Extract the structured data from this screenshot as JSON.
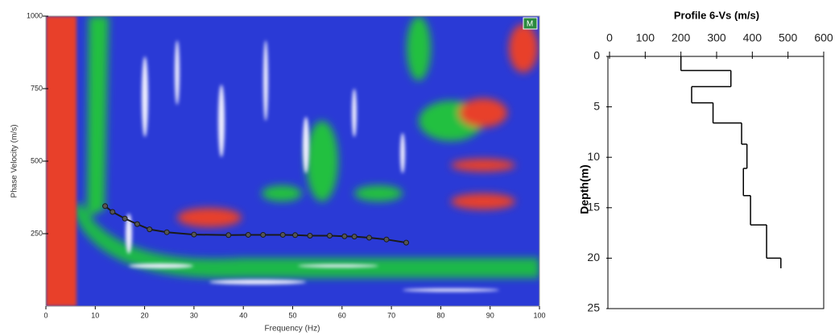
{
  "chart_data": [
    {
      "type": "line",
      "x_label": "Frequency (Hz)",
      "y_label": "Phase Velocity (m/s)",
      "badge": "M",
      "x": [
        12,
        13.5,
        16,
        18.5,
        21,
        24.5,
        30,
        37,
        41,
        44,
        48,
        50.5,
        53.5,
        57.5,
        60.5,
        62.5,
        65.5,
        69,
        73
      ],
      "series": [
        {
          "color": "#1a1a1a",
          "values": [
            345,
            325,
            302,
            283,
            265,
            255,
            247,
            245,
            246,
            246,
            246,
            245,
            243,
            243,
            241,
            240,
            236,
            230,
            219
          ]
        }
      ],
      "xlim": [
        0,
        100
      ],
      "xticks": [
        0,
        10,
        20,
        30,
        40,
        50,
        60,
        70,
        80,
        90,
        100
      ],
      "ylim": [
        0,
        1000
      ],
      "yticks": [
        250,
        500,
        750,
        1000
      ]
    },
    {
      "type": "step",
      "title": "Profile 6-Vs (m/s)",
      "y_label": "Depth(m)",
      "depth": [
        0,
        1.4,
        3,
        4.6,
        6.6,
        8.7,
        11.1,
        13.8,
        16.7,
        20,
        21
      ],
      "values": [
        200,
        340,
        230,
        290,
        370,
        385,
        375,
        395,
        440,
        480
      ],
      "color": "#000000",
      "xlim": [
        0,
        600
      ],
      "xticks": [
        0,
        100,
        200,
        300,
        400,
        500,
        600
      ],
      "xaxis_position": "top",
      "ylim": [
        0,
        25
      ],
      "yticks": [
        0,
        5,
        10,
        15,
        20,
        25
      ],
      "y_inverted": true
    }
  ]
}
